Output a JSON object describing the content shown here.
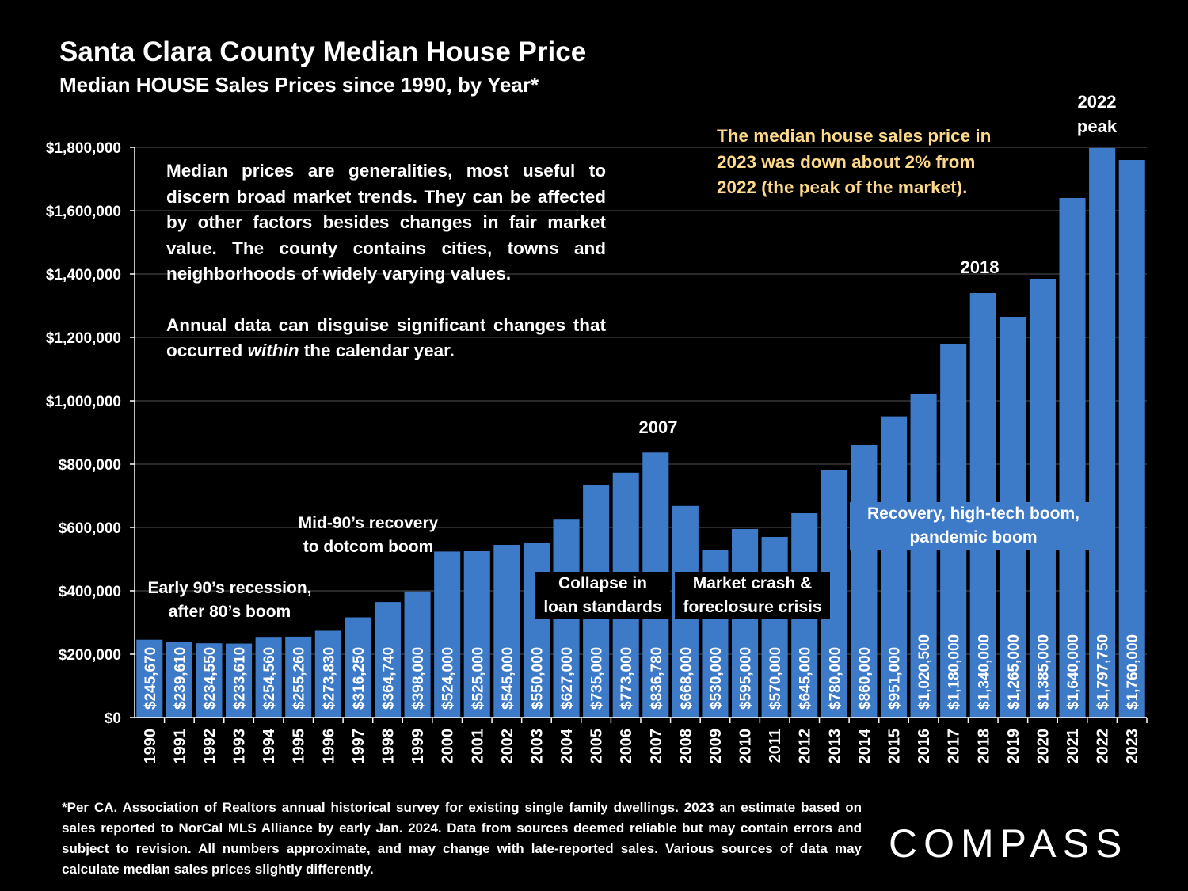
{
  "title": "Santa Clara County Median House Price",
  "subtitle": "Median HOUSE Sales Prices since 1990, by Year*",
  "colors": {
    "bar": "#3D7AC7",
    "background": "#000000",
    "text": "#FFFFFF",
    "highlight": "#FFD98A",
    "grid": "#555555"
  },
  "note": {
    "p1": "Median prices are generalities, most useful to discern broad market trends. They can be affected by other factors besides changes in fair market value. The county contains cities, towns and neighborhoods of widely varying values.",
    "p2_before": "Annual data can disguise significant changes that occurred ",
    "p2_emph": "within",
    "p2_after": " the calendar year."
  },
  "callouts": {
    "decline_2023": "The median house sales price in 2023 was down about 2% from 2022 (the peak of the market).",
    "peak_2022_line1": "2022",
    "peak_2022_line2": "peak",
    "year_2018": "2018",
    "year_2007": "2007",
    "early90s_line1": "Early 90’s recession,",
    "early90s_line2": "after 80’s boom",
    "mid90s_line1": "Mid-90’s recovery",
    "mid90s_line2": "to dotcom boom",
    "collapse_line1": "Collapse in",
    "collapse_line2": "loan standards",
    "crash_line1": "Market crash &",
    "crash_line2": "foreclosure crisis",
    "recovery_line1": "Recovery, high-tech boom,",
    "recovery_line2": "pandemic boom"
  },
  "footnote": "*Per CA. Association of Realtors annual historical survey for existing single family dwellings. 2023 an estimate based on sales reported to NorCal MLS Alliance by early Jan. 2024. Data from sources deemed reliable but may contain errors and subject to revision. All numbers approximate, and may change with late-reported sales. Various sources of data may calculate median sales prices slightly differently.",
  "logo": "COMPASS",
  "chart_data": {
    "type": "bar",
    "title": "Santa Clara County Median House Price",
    "xlabel": "",
    "ylabel": "",
    "ylim": [
      0,
      1800000
    ],
    "yticks": [
      0,
      200000,
      400000,
      600000,
      800000,
      1000000,
      1200000,
      1400000,
      1600000,
      1800000
    ],
    "ytick_labels": [
      "$0",
      "$200,000",
      "$400,000",
      "$600,000",
      "$800,000",
      "$1,000,000",
      "$1,200,000",
      "$1,400,000",
      "$1,600,000",
      "$1,800,000"
    ],
    "grid": true,
    "categories": [
      "1990",
      "1991",
      "1992",
      "1993",
      "1994",
      "1995",
      "1996",
      "1997",
      "1998",
      "1999",
      "2000",
      "2001",
      "2002",
      "2003",
      "2004",
      "2005",
      "2006",
      "2007",
      "2008",
      "2009",
      "2010",
      "2011",
      "2012",
      "2013",
      "2014",
      "2015",
      "2016",
      "2017",
      "2018",
      "2019",
      "2020",
      "2021",
      "2022",
      "2023"
    ],
    "values": [
      245670,
      239610,
      234550,
      233610,
      254560,
      255260,
      273830,
      316250,
      364740,
      398000,
      524000,
      525000,
      545000,
      550000,
      627000,
      735000,
      773000,
      836780,
      668000,
      530000,
      595000,
      570000,
      645000,
      780000,
      860000,
      951000,
      1020500,
      1180000,
      1340000,
      1265000,
      1385000,
      1640000,
      1797750,
      1760000
    ],
    "value_labels": [
      "$245,670",
      "$239,610",
      "$234,550",
      "$233,610",
      "$254,560",
      "$255,260",
      "$273,830",
      "$316,250",
      "$364,740",
      "$398,000",
      "$524,000",
      "$525,000",
      "$545,000",
      "$550,000",
      "$627,000",
      "$735,000",
      "$773,000",
      "$836,780",
      "$668,000",
      "$530,000",
      "$595,000",
      "$570,000",
      "$645,000",
      "$780,000",
      "$860,000",
      "$951,000",
      "$1,020,500",
      "$1,180,000",
      "$1,340,000",
      "$1,265,000",
      "$1,385,000",
      "$1,640,000",
      "$1,797,750",
      "$1,760,000"
    ]
  }
}
